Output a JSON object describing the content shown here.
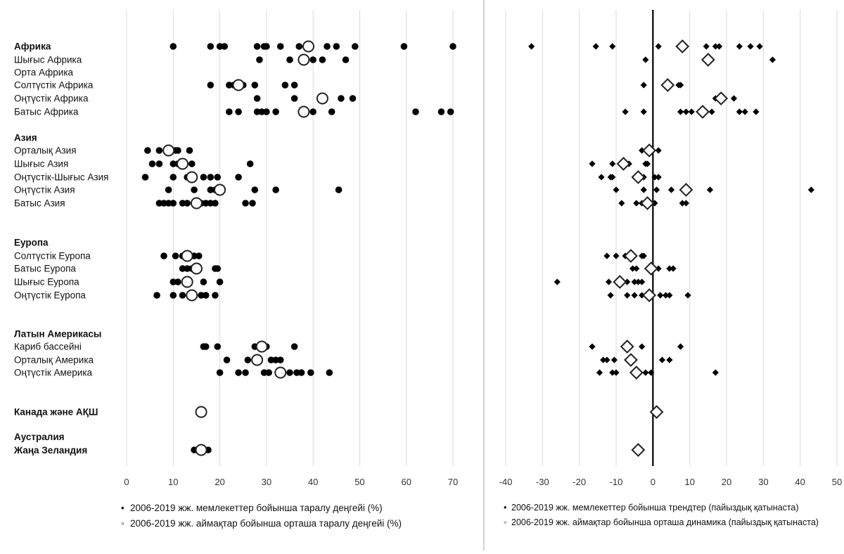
{
  "chart_data": [
    {
      "type": "scatter",
      "name": "prevalence",
      "xlim": [
        0,
        70
      ],
      "xticks": [
        "0",
        "10",
        "20",
        "30",
        "40",
        "50",
        "60",
        "70"
      ],
      "rows": [
        {
          "label": "Африка",
          "bold": true,
          "points": [
            10,
            18,
            20,
            21,
            28,
            29.5,
            30,
            33,
            37,
            43,
            45,
            49,
            59.5,
            70
          ],
          "mean": 39
        },
        {
          "label": "Шығыс Африка",
          "bold": false,
          "points": [
            28.5,
            35,
            40,
            42,
            47
          ],
          "mean": 38
        },
        {
          "label": "Орта Африка",
          "bold": false,
          "points": [],
          "mean": null
        },
        {
          "label": "Солтүстік Африка",
          "bold": false,
          "points": [
            18,
            22,
            23,
            25,
            27.5,
            34,
            36
          ],
          "mean": 24
        },
        {
          "label": "Оңтүстік Африка",
          "bold": false,
          "points": [
            28,
            36,
            46,
            48.5
          ],
          "mean": 42
        },
        {
          "label": "Батыс Африка",
          "bold": false,
          "points": [
            22,
            24,
            28,
            29,
            30,
            32,
            40,
            44,
            62,
            67.5,
            69.5
          ],
          "mean": 38
        },
        {
          "label": "Азия",
          "bold": true,
          "points": [],
          "mean": null
        },
        {
          "label": "Орталық Азия",
          "bold": false,
          "points": [
            4.5,
            7,
            10.5,
            11,
            13.5
          ],
          "mean": 9
        },
        {
          "label": "Шығыс Азия",
          "bold": false,
          "points": [
            5.5,
            7,
            10,
            11,
            14,
            26.5
          ],
          "mean": 12
        },
        {
          "label": "Оңтүстік-Шығыс Азия",
          "bold": false,
          "points": [
            4,
            10,
            13,
            16.5,
            18,
            19.5,
            24
          ],
          "mean": 14
        },
        {
          "label": "Оңтүстік Азия",
          "bold": false,
          "points": [
            9,
            14.5,
            18,
            19,
            27.5,
            32,
            45.5
          ],
          "mean": 20
        },
        {
          "label": "Батыс Азия",
          "bold": false,
          "points": [
            7,
            8,
            9,
            10,
            12,
            13,
            16,
            17,
            18,
            19,
            25.5,
            27
          ],
          "mean": 15
        },
        {
          "label": "Еуропа",
          "bold": true,
          "points": [],
          "mean": null
        },
        {
          "label": "Солтүстік Еуропа",
          "bold": false,
          "points": [
            8,
            10.5,
            12,
            14.5,
            15.5
          ],
          "mean": 13
        },
        {
          "label": "Батыс Еуропа",
          "bold": false,
          "points": [
            12,
            13,
            14,
            19,
            19.5
          ],
          "mean": 15
        },
        {
          "label": "Шығыс Еуропа",
          "bold": false,
          "points": [
            10,
            11,
            12.5,
            16.5,
            20
          ],
          "mean": 13
        },
        {
          "label": "Оңтүстік Еуропа",
          "bold": false,
          "points": [
            6.5,
            10,
            12,
            16,
            17,
            19
          ],
          "mean": 14
        },
        {
          "label": "Латын Америкасы",
          "bold": true,
          "points": [],
          "mean": null
        },
        {
          "label": "Кариб бассейні",
          "bold": false,
          "points": [
            16.5,
            17,
            19.5,
            27.5,
            30,
            36
          ],
          "mean": 29
        },
        {
          "label": "Орталық Америка",
          "bold": false,
          "points": [
            21.5,
            26,
            31,
            32,
            33
          ],
          "mean": 28
        },
        {
          "label": "Оңтүстік Америка",
          "bold": false,
          "points": [
            20,
            24,
            25.5,
            29.5,
            30.5,
            35,
            36.5,
            37.5,
            39.5,
            43.5
          ],
          "mean": 33
        },
        {
          "label": "Канада және АҚШ",
          "bold": true,
          "points": [],
          "mean": 16
        },
        {
          "label": "Аустралия Жаңа Зеландия",
          "bold": true,
          "points": [
            14.5,
            17.5
          ],
          "mean": 16
        }
      ],
      "legend": [
        {
          "marker": "•",
          "text": "2006-2019 жж. мемлекеттер бойынша таралу деңгейі (%)"
        },
        {
          "marker": "◦",
          "text": "2006-2019 жж. аймақтар бойынша орташа таралу деңгейі (%)"
        }
      ]
    },
    {
      "type": "scatter",
      "name": "trends",
      "xlim": [
        -40,
        50
      ],
      "xticks": [
        "-40",
        "-30",
        "-20",
        "-10",
        "0",
        "10",
        "20",
        "30",
        "40",
        "50"
      ],
      "rows": [
        {
          "label": "Африка",
          "points": [
            -33,
            -15.5,
            -11,
            1.5,
            14.5,
            17,
            18,
            23.5,
            26.5,
            29
          ],
          "mean": 8
        },
        {
          "label": "Шығыс Африка",
          "points": [
            -2,
            32.5
          ],
          "mean": 15
        },
        {
          "label": "Орта Африка",
          "points": [],
          "mean": null
        },
        {
          "label": "Солтүстік Африка",
          "points": [
            -2.5,
            7,
            7.5
          ],
          "mean": 4
        },
        {
          "label": "Оңтүстік Африка",
          "points": [
            17,
            22
          ],
          "mean": 18.5
        },
        {
          "label": "Батыс Африка",
          "points": [
            -7.5,
            -2.5,
            7.5,
            9,
            10.5,
            16,
            23.5,
            25,
            28
          ],
          "mean": 13.5
        },
        {
          "label": "Азия",
          "points": [],
          "mean": null
        },
        {
          "label": "Орталық Азия",
          "points": [
            -3,
            1.5
          ],
          "mean": -1
        },
        {
          "label": "Шығыс Азия",
          "points": [
            -16.5,
            -11,
            -6.5,
            -2,
            -1.5
          ],
          "mean": -8
        },
        {
          "label": "Оңтүстік-Шығыс Азия",
          "points": [
            -14,
            -11.5,
            -11,
            -2.5,
            0.5,
            1.5
          ],
          "mean": -4
        },
        {
          "label": "Оңтүстік Азия",
          "points": [
            -10,
            -2.5,
            1,
            5,
            15.5,
            43
          ],
          "mean": 9
        },
        {
          "label": "Батыс Азия",
          "points": [
            -8.5,
            -4.5,
            -3,
            0.5,
            8,
            9
          ],
          "mean": -1.5
        },
        {
          "label": "Еуропа",
          "points": [],
          "mean": null
        },
        {
          "label": "Солтүстік Еуропа",
          "points": [
            -12.5,
            -10,
            -7.5,
            -3,
            -2.5
          ],
          "mean": -6
        },
        {
          "label": "Батыс Еуропа",
          "points": [
            -5.5,
            -4.5,
            1.5,
            4.5,
            5.5
          ],
          "mean": -0.5
        },
        {
          "label": "Шығыс Еуропа",
          "points": [
            -26,
            -12,
            -7,
            -5,
            -4,
            -3
          ],
          "mean": -9
        },
        {
          "label": "Оңтүстік Еуропа",
          "points": [
            -11.5,
            -7,
            -5,
            -3,
            2,
            3.5,
            4.5,
            9.5
          ],
          "mean": -1
        },
        {
          "label": "Латын Америкасы",
          "points": [],
          "mean": null
        },
        {
          "label": "Кариб бассейні",
          "points": [
            -16.5,
            -3,
            7.5
          ],
          "mean": -7
        },
        {
          "label": "Орталық Америка",
          "points": [
            -13.5,
            -12.5,
            -10.5,
            2.5,
            4.5
          ],
          "mean": -6
        },
        {
          "label": "Оңтүстік Америка",
          "points": [
            -14.5,
            -11,
            -10,
            -2,
            -0.5,
            17
          ],
          "mean": -4.5
        },
        {
          "label": "Канада және АҚШ",
          "points": [],
          "mean": 1
        },
        {
          "label": "Аустралия Жаңа Зеландия",
          "points": [],
          "mean": -4
        }
      ],
      "legend": [
        {
          "marker": "•",
          "text": "2006-2019 жж. мемлекеттер бойынша трендтер (пайыздық қатынаста)"
        },
        {
          "marker": "◦",
          "text": "2006-2019 жж. аймақтар бойынша орташа динамика (пайыздық қатынаста)"
        }
      ]
    }
  ]
}
